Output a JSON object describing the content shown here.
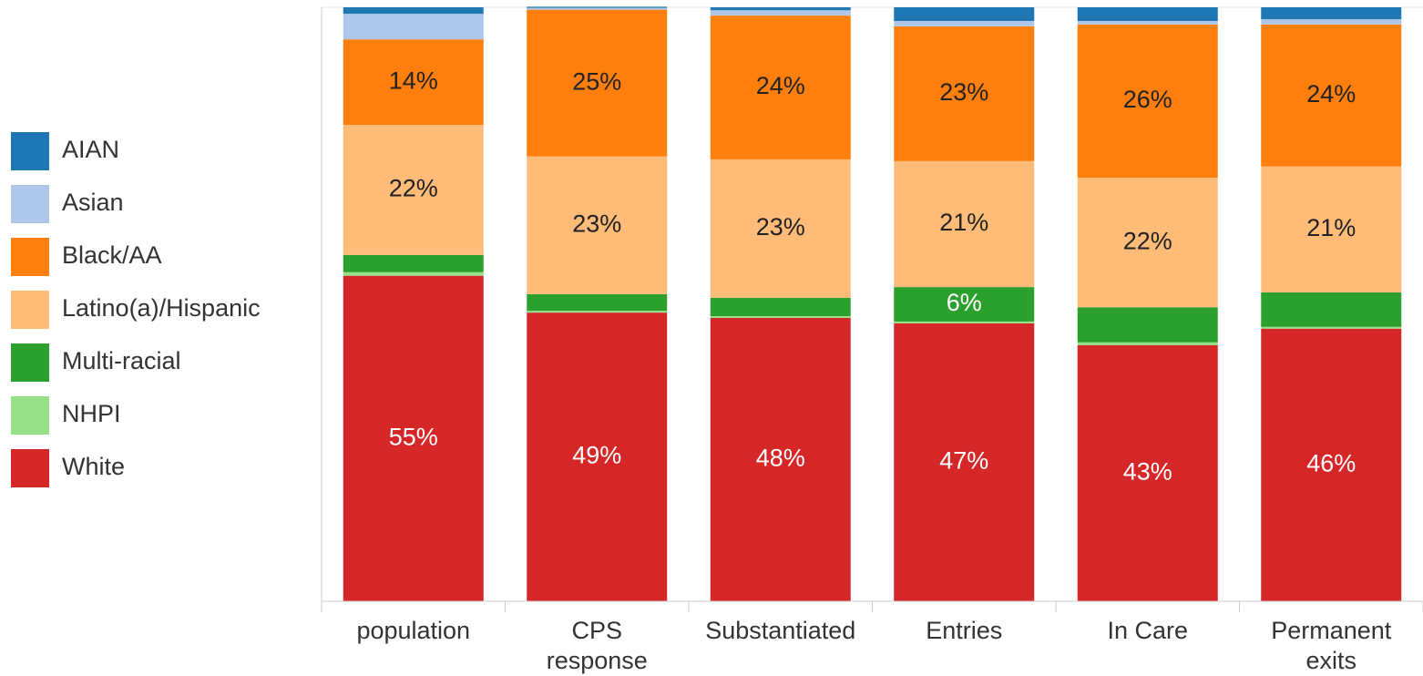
{
  "chart_data": {
    "type": "stacked_bar",
    "categories": [
      "population",
      "CPS response",
      "Substantiated",
      "Entries",
      "In Care",
      "Permanent exits"
    ],
    "ylim": [
      0,
      100
    ],
    "legend": "left",
    "series": [
      {
        "name": "AIAN",
        "color": "#1f77b4",
        "values": [
          1.1,
          0.2,
          0.5,
          2.3,
          2.3,
          2.0
        ]
      },
      {
        "name": "Asian",
        "color": "#aec7e8",
        "values": [
          4.3,
          0.3,
          0.9,
          0.9,
          0.6,
          0.9
        ]
      },
      {
        "name": "Black/AA",
        "color": "#ff7f0e",
        "values": [
          14.4,
          24.7,
          24.2,
          22.7,
          25.8,
          23.9
        ],
        "value_labels": [
          "14%",
          "25%",
          "24%",
          "23%",
          "26%",
          "24%"
        ]
      },
      {
        "name": "Latino(a)/Hispanic",
        "color": "#ffbb78",
        "values": [
          21.9,
          23.2,
          23.3,
          21.2,
          21.8,
          21.2
        ],
        "value_labels": [
          "22%",
          "23%",
          "23%",
          "21%",
          "22%",
          "21%"
        ]
      },
      {
        "name": "Multi-racial",
        "color": "#2ca02c",
        "values": [
          2.9,
          2.8,
          3.1,
          5.8,
          5.9,
          5.8
        ],
        "value_labels": [
          null,
          null,
          null,
          "6%",
          null,
          null
        ]
      },
      {
        "name": "NHPI",
        "color": "#98df8a",
        "values": [
          0.6,
          0.3,
          0.3,
          0.3,
          0.5,
          0.3
        ]
      },
      {
        "name": "White",
        "color": "#d62728",
        "values": [
          54.8,
          48.6,
          47.7,
          46.8,
          43.1,
          45.9
        ],
        "value_labels": [
          "55%",
          "49%",
          "48%",
          "47%",
          "43%",
          "46%"
        ]
      }
    ]
  }
}
